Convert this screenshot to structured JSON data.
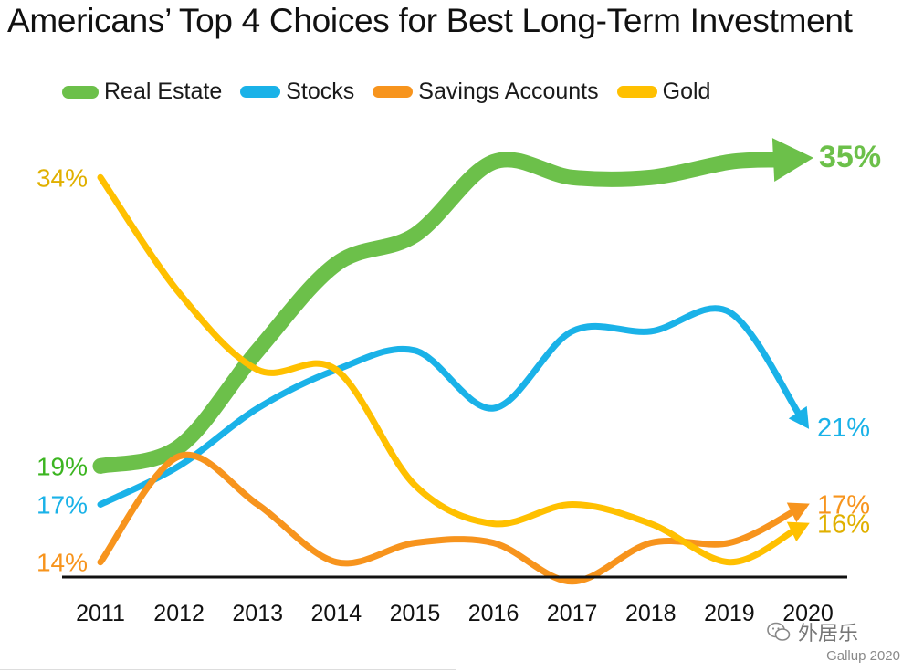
{
  "title": "Americans’ Top 4 Choices for Best Long-Term Investment",
  "source": "Gallup 2020",
  "watermark": "外居乐",
  "chart_data": {
    "type": "line",
    "title": "Americans’ Top 4 Choices for Best Long-Term Investment",
    "x": [
      "2011",
      "2012",
      "2013",
      "2014",
      "2015",
      "2016",
      "2017",
      "2018",
      "2019",
      "2020"
    ],
    "ylim": [
      10,
      38
    ],
    "grid": false,
    "legend": "top",
    "series": [
      {
        "name": "Real Estate",
        "color": "#6cc04a",
        "values": [
          19,
          20,
          25,
          29.5,
          31,
          34.8,
          34,
          34,
          34.8,
          35
        ],
        "start_label": "19%",
        "end_label": "35%"
      },
      {
        "name": "Stocks",
        "color": "#1ab2e8",
        "values": [
          17,
          19,
          22,
          24,
          25,
          22,
          26,
          26,
          27,
          21
        ],
        "start_label": "17%",
        "end_label": "21%"
      },
      {
        "name": "Savings Accounts",
        "color": "#f7941d",
        "values": [
          14,
          19.5,
          17,
          14,
          15,
          15,
          13,
          15,
          15,
          17
        ],
        "start_label": "14%",
        "end_label": "17%"
      },
      {
        "name": "Gold",
        "color": "#ffc000",
        "values": [
          34,
          28,
          24,
          24,
          18,
          16,
          17,
          16,
          14,
          16
        ],
        "start_label": "34%",
        "end_label": "16%"
      }
    ]
  }
}
